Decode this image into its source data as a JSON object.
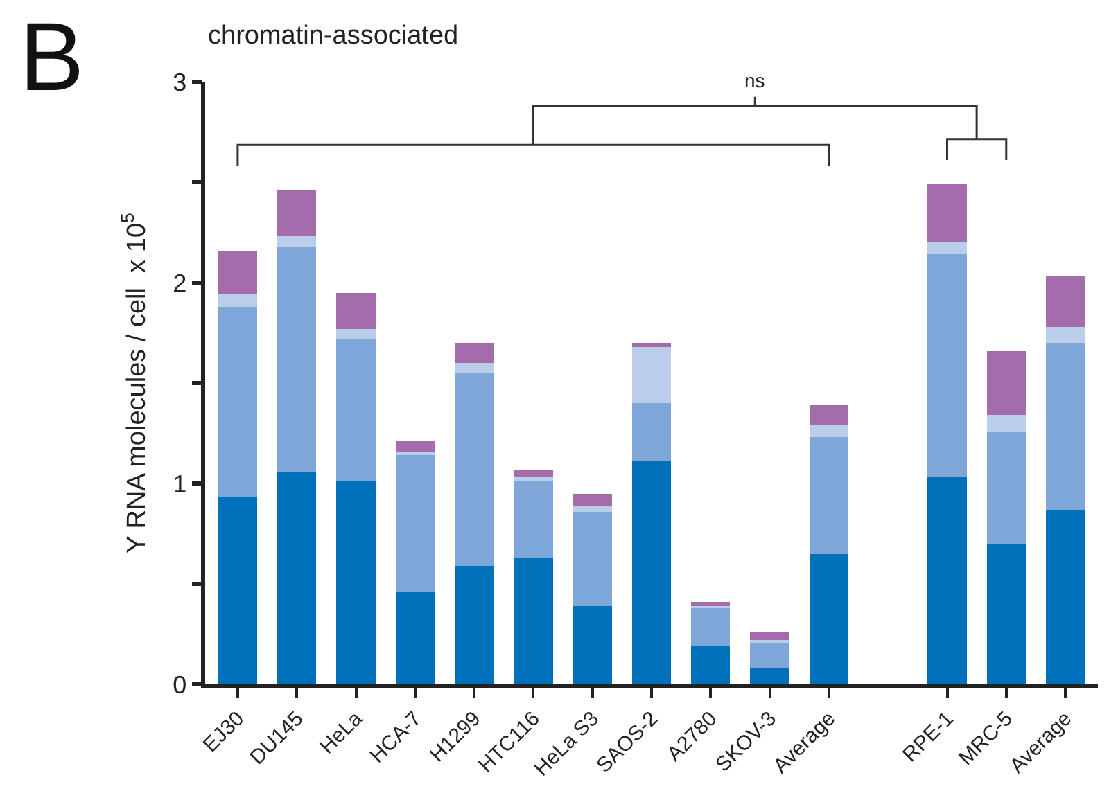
{
  "chart_data": {
    "type": "bar",
    "stacked": true,
    "title": "chromatin-associated",
    "ylabel": "Y RNA molecules / cell  x 10$^{5}$",
    "categories": [
      "EJ30",
      "DU145",
      "HeLa",
      "HCA-7",
      "H1299",
      "HTC116",
      "HeLa S3",
      "SAOS-2",
      "A2780",
      "SKOV-3",
      "Average",
      null,
      "RPE-1",
      "MRC-5",
      "Average"
    ],
    "series": [
      {
        "color": "#0070bb",
        "values": [
          0.93,
          1.06,
          1.01,
          0.46,
          0.59,
          0.63,
          0.39,
          1.11,
          0.19,
          0.08,
          0.65,
          null,
          1.03,
          0.7,
          0.87
        ]
      },
      {
        "color": "#7ea7d8",
        "values": [
          0.95,
          1.12,
          0.71,
          0.68,
          0.96,
          0.38,
          0.47,
          0.29,
          0.19,
          0.13,
          0.58,
          null,
          1.11,
          0.56,
          0.83
        ]
      },
      {
        "color": "#bacdeb",
        "values": [
          0.06,
          0.05,
          0.05,
          0.02,
          0.05,
          0.02,
          0.03,
          0.28,
          0.01,
          0.01,
          0.06,
          null,
          0.06,
          0.08,
          0.08
        ]
      },
      {
        "color": "#a46caa",
        "values": [
          0.22,
          0.23,
          0.18,
          0.05,
          0.1,
          0.04,
          0.06,
          0.02,
          0.02,
          0.04,
          0.1,
          null,
          0.29,
          0.32,
          0.25
        ]
      }
    ],
    "ylim": [
      0,
      3
    ],
    "yticks": [
      0,
      {
        "value": 0.5,
        "label": null
      },
      1,
      {
        "value": 1.5,
        "label": null
      },
      2,
      {
        "value": 2.5,
        "label": null
      },
      3
    ],
    "annotations": [
      "B",
      "ns"
    ]
  }
}
